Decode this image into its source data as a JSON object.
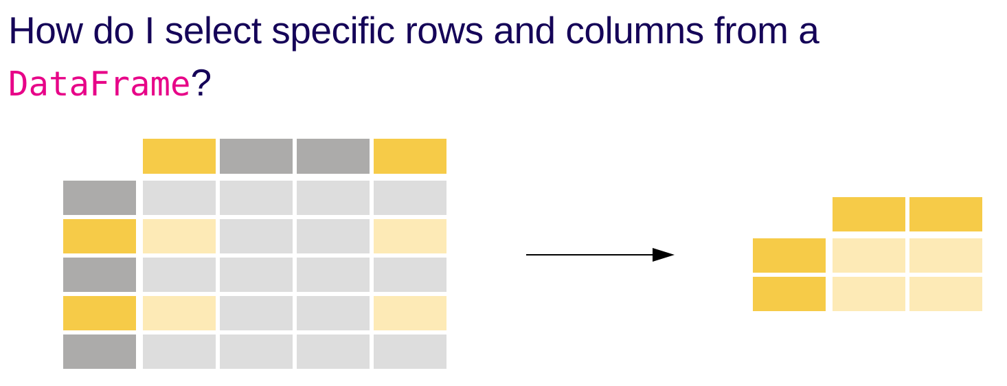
{
  "title": {
    "prefix": "How do I select specific rows and columns from a",
    "code": "DataFrame",
    "suffix": "?"
  },
  "colors": {
    "title_text": "#150458",
    "code_text": "#e70488",
    "selected_header": "#f6cb48",
    "unselected_header": "#acabaa",
    "plain_cell": "#dddddd",
    "selected_cell": "#fdeab6",
    "arrow": "#000000"
  },
  "source_table": {
    "columns": [
      {
        "selected": true
      },
      {
        "selected": false
      },
      {
        "selected": false
      },
      {
        "selected": true
      }
    ],
    "rows": [
      {
        "selected": false
      },
      {
        "selected": true
      },
      {
        "selected": false
      },
      {
        "selected": true
      },
      {
        "selected": false
      }
    ]
  },
  "result_table": {
    "column_count": 2,
    "row_count": 2
  }
}
